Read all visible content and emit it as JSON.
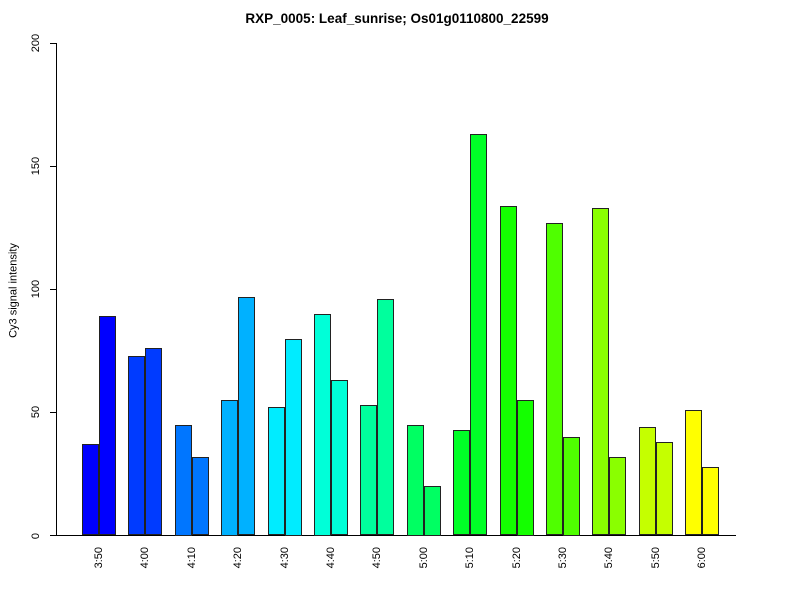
{
  "chart_data": {
    "type": "bar",
    "title": "RXP_0005: Leaf_sunrise; Os01g0110800_22599",
    "xlabel": "",
    "ylabel": "Cy3 signal intensity",
    "ylim": [
      0,
      200
    ],
    "yticks": [
      0,
      50,
      100,
      150,
      200
    ],
    "grid": false,
    "legend_position": "none",
    "categories": [
      "3:50",
      "4:00",
      "4:10",
      "4:20",
      "4:30",
      "4:40",
      "4:50",
      "5:00",
      "5:10",
      "5:20",
      "5:30",
      "5:40",
      "5:50",
      "6:00"
    ],
    "values_per_category": [
      [
        37,
        89
      ],
      [
        73,
        76
      ],
      [
        45,
        32
      ],
      [
        55,
        97
      ],
      [
        52,
        80
      ],
      [
        90,
        63
      ],
      [
        53,
        96
      ],
      [
        45,
        20
      ],
      [
        43,
        163
      ],
      [
        134,
        55
      ],
      [
        127,
        40
      ],
      [
        133,
        32
      ],
      [
        44,
        38
      ],
      [
        51,
        28
      ]
    ],
    "group_colors": [
      "#0000ff",
      "#003bff",
      "#0076ff",
      "#00b1ff",
      "#00ecff",
      "#00ffd8",
      "#00ff9d",
      "#00ff62",
      "#00ff27",
      "#14ff00",
      "#4fff00",
      "#8aff00",
      "#c5ff00",
      "#ffff00"
    ],
    "bar_border_color": "#222222",
    "axis_color": "#000000"
  }
}
